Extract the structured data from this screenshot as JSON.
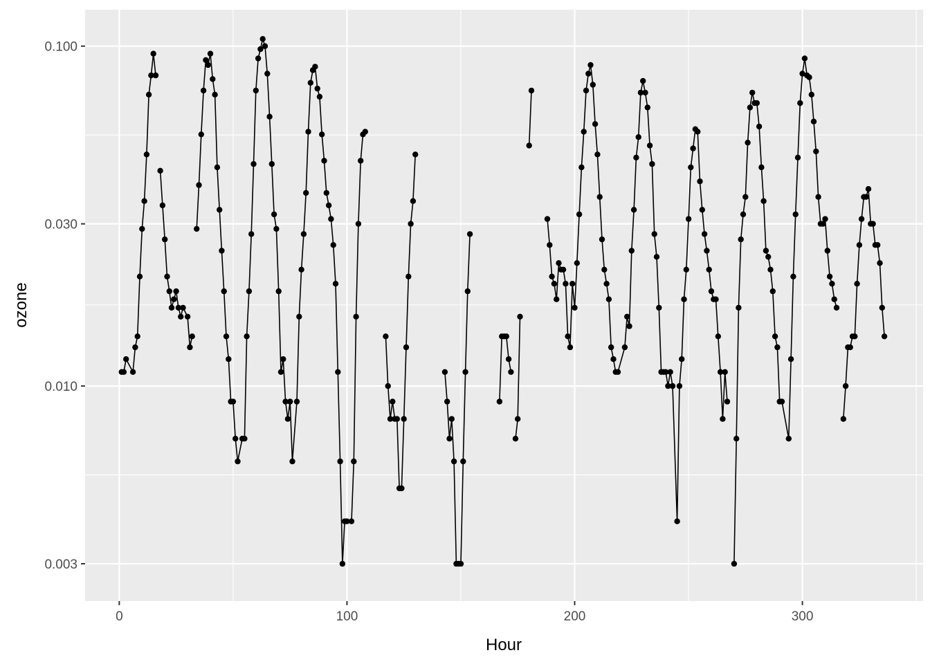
{
  "chart_data": {
    "type": "line",
    "xlabel": "Hour",
    "ylabel": "ozone",
    "y_scale": "log10",
    "xlim": [
      -15,
      353
    ],
    "ylim": [
      0.00233,
      0.128
    ],
    "x_ticks": [
      0,
      100,
      200,
      300
    ],
    "x_tick_labels": [
      "0",
      "100",
      "200",
      "300"
    ],
    "y_ticks": [
      0.003,
      0.01,
      0.03,
      0.1
    ],
    "y_tick_labels": [
      "0.003",
      "0.010",
      "0.030",
      "0.100"
    ],
    "grid": true,
    "colors": {
      "panel": "#ebebeb",
      "grid": "#ffffff",
      "line": "#000000",
      "point": "#000000"
    },
    "segments": [
      [
        [
          1,
          0.011
        ],
        [
          2,
          0.011
        ],
        [
          3,
          0.012
        ],
        [
          6,
          0.011
        ],
        [
          7,
          0.013
        ],
        [
          8,
          0.014
        ],
        [
          9,
          0.021
        ],
        [
          10,
          0.029
        ],
        [
          11,
          0.035
        ],
        [
          12,
          0.048
        ],
        [
          13,
          0.072
        ],
        [
          14,
          0.082
        ],
        [
          15,
          0.095
        ],
        [
          16,
          0.082
        ]
      ],
      [
        [
          18,
          0.043
        ],
        [
          19,
          0.034
        ],
        [
          20,
          0.027
        ],
        [
          21,
          0.021
        ],
        [
          22,
          0.019
        ],
        [
          23,
          0.017
        ],
        [
          24,
          0.018
        ],
        [
          25,
          0.019
        ],
        [
          26,
          0.017
        ],
        [
          27,
          0.016
        ],
        [
          28,
          0.017
        ],
        [
          30,
          0.016
        ],
        [
          31,
          0.013
        ],
        [
          32,
          0.014
        ]
      ],
      [
        [
          34,
          0.029
        ],
        [
          35,
          0.039
        ],
        [
          36,
          0.055
        ],
        [
          37,
          0.074
        ],
        [
          38,
          0.091
        ],
        [
          39,
          0.088
        ],
        [
          40,
          0.095
        ],
        [
          41,
          0.08
        ],
        [
          42,
          0.072
        ],
        [
          43,
          0.044
        ],
        [
          44,
          0.033
        ],
        [
          45,
          0.025
        ],
        [
          46,
          0.019
        ],
        [
          47,
          0.014
        ],
        [
          48,
          0.012
        ],
        [
          49,
          0.009
        ],
        [
          50,
          0.009
        ],
        [
          51,
          0.007
        ],
        [
          52,
          0.006
        ],
        [
          54,
          0.007
        ],
        [
          55,
          0.007
        ],
        [
          56,
          0.014
        ],
        [
          57,
          0.019
        ],
        [
          58,
          0.028
        ],
        [
          59,
          0.045
        ],
        [
          60,
          0.074
        ],
        [
          61,
          0.092
        ],
        [
          62,
          0.098
        ],
        [
          63,
          0.105
        ],
        [
          64,
          0.1
        ],
        [
          65,
          0.083
        ],
        [
          66,
          0.062
        ],
        [
          67,
          0.045
        ],
        [
          68,
          0.032
        ],
        [
          69,
          0.029
        ],
        [
          70,
          0.019
        ],
        [
          71,
          0.011
        ],
        [
          72,
          0.012
        ],
        [
          73,
          0.009
        ],
        [
          74,
          0.008
        ],
        [
          75,
          0.009
        ],
        [
          76,
          0.006
        ],
        [
          78,
          0.009
        ],
        [
          79,
          0.016
        ],
        [
          80,
          0.022
        ],
        [
          81,
          0.028
        ],
        [
          82,
          0.037
        ],
        [
          83,
          0.056
        ],
        [
          84,
          0.078
        ],
        [
          85,
          0.085
        ],
        [
          86,
          0.087
        ],
        [
          87,
          0.075
        ],
        [
          88,
          0.071
        ],
        [
          89,
          0.055
        ],
        [
          90,
          0.046
        ],
        [
          91,
          0.037
        ],
        [
          92,
          0.034
        ],
        [
          93,
          0.031
        ],
        [
          94,
          0.026
        ],
        [
          95,
          0.02
        ],
        [
          96,
          0.011
        ],
        [
          97,
          0.006
        ],
        [
          98,
          0.003
        ],
        [
          99,
          0.004
        ],
        [
          100,
          0.004
        ],
        [
          102,
          0.004
        ],
        [
          103,
          0.006
        ],
        [
          104,
          0.016
        ],
        [
          105,
          0.03
        ],
        [
          106,
          0.046
        ],
        [
          107,
          0.055
        ],
        [
          108,
          0.056
        ]
      ],
      [
        [
          117,
          0.014
        ],
        [
          118,
          0.01
        ],
        [
          119,
          0.008
        ],
        [
          120,
          0.009
        ],
        [
          121,
          0.008
        ],
        [
          122,
          0.008
        ],
        [
          123,
          0.005
        ],
        [
          124,
          0.005
        ],
        [
          125,
          0.008
        ],
        [
          126,
          0.013
        ],
        [
          127,
          0.021
        ],
        [
          128,
          0.03
        ],
        [
          129,
          0.035
        ],
        [
          130,
          0.048
        ]
      ],
      [
        [
          143,
          0.011
        ],
        [
          144,
          0.009
        ],
        [
          145,
          0.007
        ],
        [
          146,
          0.008
        ],
        [
          147,
          0.006
        ],
        [
          148,
          0.003
        ],
        [
          149,
          0.003
        ],
        [
          150,
          0.003
        ],
        [
          151,
          0.006
        ],
        [
          152,
          0.011
        ],
        [
          153,
          0.019
        ],
        [
          154,
          0.028
        ]
      ],
      [
        [
          167,
          0.009
        ],
        [
          168,
          0.014
        ],
        [
          169,
          0.014
        ],
        [
          170,
          0.014
        ],
        [
          171,
          0.012
        ],
        [
          172,
          0.011
        ]
      ],
      [
        [
          174,
          0.007
        ],
        [
          175,
          0.008
        ],
        [
          176,
          0.016
        ]
      ],
      [
        [
          180,
          0.051
        ],
        [
          181,
          0.074
        ]
      ],
      [
        [
          188,
          0.031
        ],
        [
          189,
          0.026
        ],
        [
          190,
          0.021
        ],
        [
          191,
          0.02
        ],
        [
          192,
          0.018
        ],
        [
          193,
          0.023
        ],
        [
          194,
          0.022
        ],
        [
          195,
          0.022
        ],
        [
          196,
          0.02
        ],
        [
          197,
          0.014
        ],
        [
          198,
          0.013
        ],
        [
          199,
          0.02
        ],
        [
          200,
          0.017
        ],
        [
          201,
          0.023
        ],
        [
          202,
          0.032
        ],
        [
          203,
          0.044
        ],
        [
          204,
          0.056
        ],
        [
          205,
          0.074
        ],
        [
          206,
          0.083
        ],
        [
          207,
          0.088
        ],
        [
          208,
          0.077
        ],
        [
          209,
          0.059
        ],
        [
          210,
          0.048
        ],
        [
          211,
          0.036
        ],
        [
          212,
          0.027
        ],
        [
          213,
          0.022
        ],
        [
          214,
          0.02
        ],
        [
          215,
          0.018
        ],
        [
          216,
          0.013
        ],
        [
          217,
          0.012
        ],
        [
          218,
          0.011
        ],
        [
          219,
          0.011
        ],
        [
          222,
          0.013
        ],
        [
          223,
          0.016
        ],
        [
          224,
          0.015
        ],
        [
          225,
          0.025
        ],
        [
          226,
          0.033
        ],
        [
          227,
          0.047
        ],
        [
          228,
          0.054
        ],
        [
          229,
          0.073
        ],
        [
          230,
          0.079
        ],
        [
          231,
          0.073
        ],
        [
          232,
          0.066
        ],
        [
          233,
          0.051
        ],
        [
          234,
          0.045
        ],
        [
          235,
          0.028
        ],
        [
          236,
          0.024
        ],
        [
          237,
          0.017
        ],
        [
          238,
          0.011
        ],
        [
          239,
          0.011
        ],
        [
          240,
          0.011
        ],
        [
          241,
          0.01
        ],
        [
          242,
          0.011
        ],
        [
          243,
          0.01
        ],
        [
          245,
          0.004
        ],
        [
          246,
          0.01
        ],
        [
          247,
          0.012
        ],
        [
          248,
          0.018
        ],
        [
          249,
          0.022
        ],
        [
          250,
          0.031
        ],
        [
          251,
          0.044
        ],
        [
          252,
          0.05
        ],
        [
          253,
          0.057
        ],
        [
          254,
          0.056
        ],
        [
          255,
          0.04
        ],
        [
          256,
          0.033
        ],
        [
          257,
          0.028
        ],
        [
          258,
          0.025
        ],
        [
          259,
          0.022
        ],
        [
          260,
          0.019
        ],
        [
          261,
          0.018
        ],
        [
          262,
          0.018
        ],
        [
          263,
          0.014
        ],
        [
          264,
          0.011
        ],
        [
          265,
          0.008
        ],
        [
          266,
          0.011
        ],
        [
          267,
          0.009
        ]
      ],
      [
        [
          270,
          0.003
        ],
        [
          271,
          0.007
        ],
        [
          272,
          0.017
        ],
        [
          273,
          0.027
        ],
        [
          274,
          0.032
        ],
        [
          275,
          0.036
        ],
        [
          276,
          0.052
        ],
        [
          277,
          0.066
        ],
        [
          278,
          0.073
        ],
        [
          279,
          0.068
        ],
        [
          280,
          0.068
        ],
        [
          281,
          0.058
        ],
        [
          282,
          0.044
        ],
        [
          283,
          0.035
        ],
        [
          284,
          0.025
        ],
        [
          285,
          0.024
        ],
        [
          286,
          0.022
        ],
        [
          287,
          0.019
        ],
        [
          288,
          0.014
        ],
        [
          289,
          0.013
        ],
        [
          290,
          0.009
        ],
        [
          291,
          0.009
        ],
        [
          294,
          0.007
        ],
        [
          295,
          0.012
        ],
        [
          296,
          0.021
        ],
        [
          297,
          0.032
        ],
        [
          298,
          0.047
        ],
        [
          299,
          0.068
        ],
        [
          300,
          0.083
        ],
        [
          301,
          0.092
        ],
        [
          302,
          0.082
        ],
        [
          303,
          0.081
        ],
        [
          304,
          0.072
        ],
        [
          305,
          0.06
        ],
        [
          306,
          0.049
        ],
        [
          307,
          0.036
        ],
        [
          308,
          0.03
        ],
        [
          309,
          0.03
        ],
        [
          310,
          0.031
        ],
        [
          311,
          0.025
        ],
        [
          312,
          0.021
        ],
        [
          313,
          0.02
        ],
        [
          314,
          0.018
        ],
        [
          315,
          0.017
        ]
      ],
      [
        [
          318,
          0.008
        ],
        [
          319,
          0.01
        ],
        [
          320,
          0.013
        ],
        [
          321,
          0.013
        ],
        [
          322,
          0.014
        ],
        [
          323,
          0.014
        ],
        [
          324,
          0.02
        ],
        [
          325,
          0.026
        ],
        [
          326,
          0.031
        ],
        [
          327,
          0.036
        ],
        [
          328,
          0.036
        ],
        [
          329,
          0.038
        ],
        [
          330,
          0.03
        ],
        [
          331,
          0.03
        ],
        [
          332,
          0.026
        ],
        [
          333,
          0.026
        ],
        [
          334,
          0.023
        ],
        [
          335,
          0.017
        ],
        [
          336,
          0.014
        ]
      ]
    ]
  }
}
